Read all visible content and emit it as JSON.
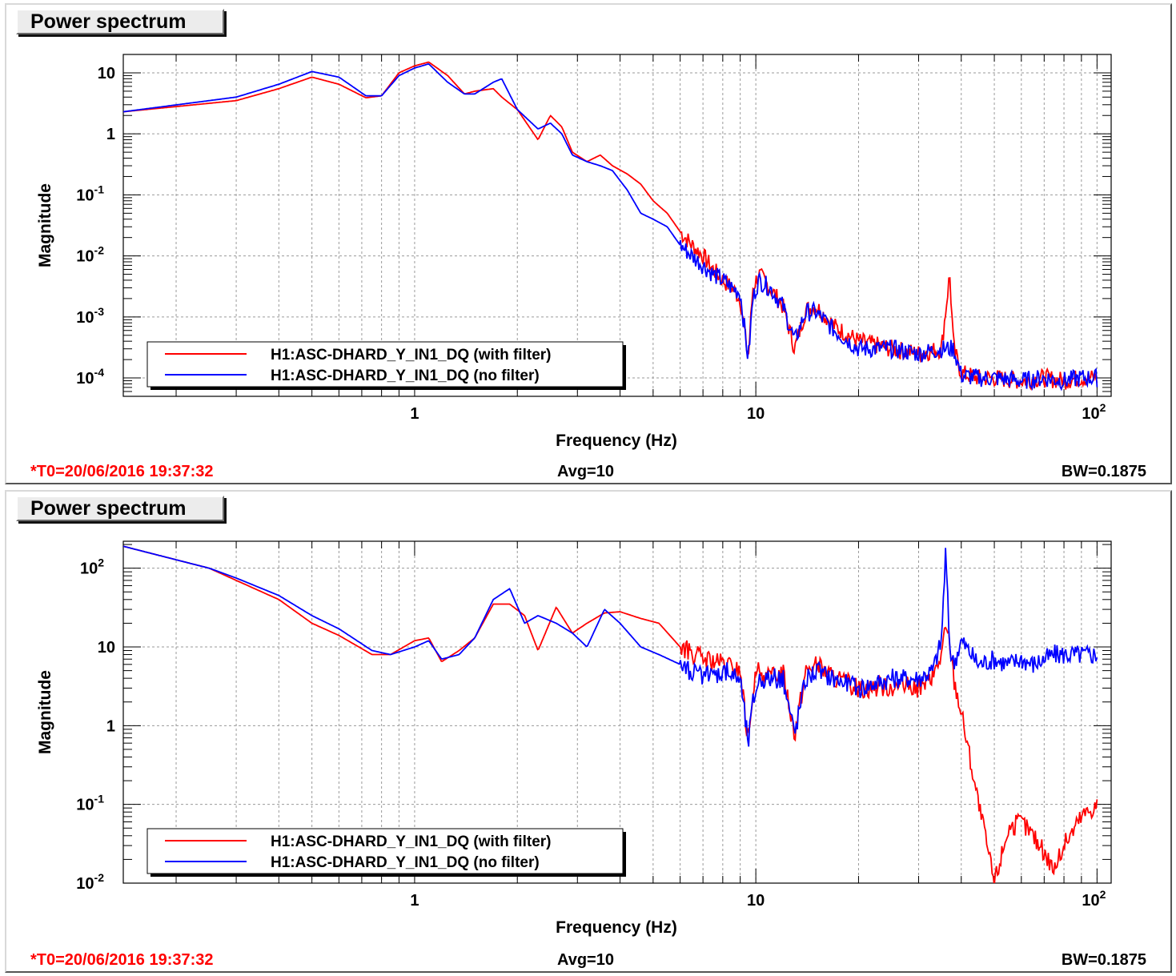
{
  "panels": [
    {
      "title": "Power spectrum",
      "footer": {
        "t0": "*T0=20/06/2016 19:37:32",
        "avg": "Avg=10",
        "bw": "BW=0.1875"
      }
    },
    {
      "title": "Power spectrum",
      "footer": {
        "t0": "*T0=20/06/2016 19:37:32",
        "avg": "Avg=10",
        "bw": "BW=0.1875"
      }
    }
  ],
  "colors": {
    "with_filter": "#ff0000",
    "no_filter": "#0000ff"
  },
  "chart_data": [
    {
      "type": "line",
      "title": "Power spectrum",
      "xlabel": "Frequency (Hz)",
      "ylabel": "Magnitude",
      "xscale": "log",
      "yscale": "log",
      "xlim": [
        0.14,
        110
      ],
      "ylim": [
        5e-05,
        20
      ],
      "xticks": [
        {
          "v": 1,
          "base": "1",
          "exp": ""
        },
        {
          "v": 10,
          "base": "10",
          "exp": ""
        },
        {
          "v": 100,
          "base": "10",
          "exp": "2"
        }
      ],
      "yticks": [
        {
          "v": 10,
          "base": "10",
          "exp": ""
        },
        {
          "v": 1,
          "base": "1",
          "exp": ""
        },
        {
          "v": 0.1,
          "base": "10",
          "exp": "-1"
        },
        {
          "v": 0.01,
          "base": "10",
          "exp": "-2"
        },
        {
          "v": 0.001,
          "base": "10",
          "exp": "-3"
        },
        {
          "v": 0.0001,
          "base": "10",
          "exp": "-4"
        }
      ],
      "grid": true,
      "legend_position": "bottom-left",
      "series": [
        {
          "name": "H1:ASC-DHARD_Y_IN1_DQ (with filter)",
          "color": "#ff0000",
          "x": [
            0.14,
            0.3,
            0.4,
            0.5,
            0.6,
            0.72,
            0.8,
            0.9,
            1.0,
            1.1,
            1.25,
            1.4,
            1.5,
            1.7,
            1.8,
            2.0,
            2.3,
            2.5,
            2.7,
            2.9,
            3.2,
            3.5,
            3.8,
            4.2,
            4.6,
            5.0,
            5.5,
            6.0,
            6.5,
            7.0,
            7.5,
            8.0,
            8.5,
            9.0,
            9.5,
            9.8,
            10.2,
            11,
            12,
            13,
            14,
            15,
            17,
            20,
            25,
            30,
            35,
            37,
            38,
            40,
            45,
            50,
            60,
            70,
            80,
            90,
            100
          ],
          "y": [
            2.3,
            3.5,
            5.5,
            8.5,
            6.5,
            3.9,
            4.2,
            10,
            13,
            15,
            9,
            4.5,
            5,
            5.5,
            4,
            2.5,
            0.8,
            2.0,
            1.3,
            0.5,
            0.35,
            0.45,
            0.3,
            0.22,
            0.15,
            0.08,
            0.05,
            0.025,
            0.015,
            0.01,
            0.006,
            0.004,
            0.003,
            0.002,
            0.0002,
            0.003,
            0.005,
            0.003,
            0.0015,
            0.0003,
            0.0013,
            0.0015,
            0.0007,
            0.0004,
            0.0003,
            0.00025,
            0.0003,
            0.005,
            0.0003,
            0.00012,
            0.0001,
            0.0001,
            9e-05,
            0.0001,
            9e-05,
            0.0001,
            0.0001
          ],
          "noise": 0.35
        },
        {
          "name": "H1:ASC-DHARD_Y_IN1_DQ (no filter)",
          "color": "#0000ff",
          "x": [
            0.14,
            0.3,
            0.4,
            0.5,
            0.6,
            0.72,
            0.8,
            0.9,
            1.0,
            1.1,
            1.25,
            1.4,
            1.5,
            1.7,
            1.8,
            2.0,
            2.3,
            2.5,
            2.7,
            2.9,
            3.2,
            3.5,
            3.8,
            4.2,
            4.6,
            5.0,
            5.5,
            6.0,
            6.5,
            7.0,
            7.5,
            8.0,
            8.5,
            9.0,
            9.5,
            9.8,
            10.2,
            11,
            12,
            13,
            14,
            15,
            17,
            20,
            25,
            30,
            35,
            37,
            38,
            40,
            45,
            50,
            60,
            70,
            80,
            90,
            100
          ],
          "y": [
            2.3,
            4,
            6.5,
            10.5,
            8.5,
            4.2,
            4.2,
            9,
            12,
            14,
            7,
            4.5,
            4.5,
            7,
            8,
            2.5,
            1.2,
            1.5,
            1.0,
            0.45,
            0.35,
            0.3,
            0.25,
            0.12,
            0.05,
            0.04,
            0.03,
            0.015,
            0.01,
            0.007,
            0.005,
            0.004,
            0.003,
            0.0025,
            0.0002,
            0.002,
            0.004,
            0.003,
            0.0015,
            0.0004,
            0.0012,
            0.0012,
            0.0006,
            0.0003,
            0.0003,
            0.00025,
            0.0003,
            0.0003,
            0.0003,
            0.00011,
            0.0001,
            0.0001,
            9e-05,
            0.0001,
            9e-05,
            0.0001,
            0.0001
          ],
          "noise": 0.35
        }
      ]
    },
    {
      "type": "line",
      "title": "Power spectrum",
      "xlabel": "Frequency (Hz)",
      "ylabel": "Magnitude",
      "xscale": "log",
      "yscale": "log",
      "xlim": [
        0.14,
        110
      ],
      "ylim": [
        0.01,
        220
      ],
      "xticks": [
        {
          "v": 1,
          "base": "1",
          "exp": ""
        },
        {
          "v": 10,
          "base": "10",
          "exp": ""
        },
        {
          "v": 100,
          "base": "10",
          "exp": "2"
        }
      ],
      "yticks": [
        {
          "v": 100,
          "base": "10",
          "exp": "2"
        },
        {
          "v": 10,
          "base": "10",
          "exp": ""
        },
        {
          "v": 1,
          "base": "1",
          "exp": ""
        },
        {
          "v": 0.1,
          "base": "10",
          "exp": "-1"
        },
        {
          "v": 0.01,
          "base": "10",
          "exp": "-2"
        }
      ],
      "grid": true,
      "legend_position": "bottom-left",
      "series": [
        {
          "name": "H1:ASC-DHARD_Y_IN1_DQ (with filter)",
          "color": "#ff0000",
          "x": [
            0.14,
            0.25,
            0.3,
            0.4,
            0.5,
            0.6,
            0.75,
            0.85,
            1.0,
            1.1,
            1.2,
            1.35,
            1.5,
            1.7,
            1.9,
            2.1,
            2.3,
            2.6,
            2.9,
            3.2,
            3.6,
            4.0,
            4.6,
            5.2,
            6.0,
            7.0,
            8.0,
            9.0,
            9.5,
            9.8,
            10.2,
            11,
            12,
            13,
            14,
            15,
            17,
            20,
            25,
            30,
            33,
            35,
            36,
            37,
            38,
            40,
            45,
            50,
            55,
            60,
            65,
            75,
            80,
            90,
            100
          ],
          "y": [
            190,
            100,
            70,
            40,
            20,
            14,
            8,
            8,
            12,
            13,
            6.5,
            9,
            13,
            35,
            35,
            25,
            9,
            32,
            15,
            20,
            27,
            28,
            23,
            20,
            10,
            7,
            6,
            5,
            0.6,
            3,
            5,
            4,
            5,
            0.8,
            5,
            6,
            4,
            3,
            3.2,
            3,
            4,
            8,
            17,
            12,
            4,
            1.5,
            0.1,
            0.01,
            0.05,
            0.06,
            0.04,
            0.015,
            0.03,
            0.07,
            0.1
          ],
          "noise": 0.3
        },
        {
          "name": "H1:ASC-DHARD_Y_IN1_DQ (no filter)",
          "color": "#0000ff",
          "x": [
            0.14,
            0.25,
            0.3,
            0.4,
            0.5,
            0.6,
            0.75,
            0.85,
            1.0,
            1.1,
            1.2,
            1.35,
            1.5,
            1.7,
            1.9,
            2.1,
            2.3,
            2.6,
            2.9,
            3.2,
            3.6,
            4.0,
            4.6,
            5.2,
            6.0,
            7.0,
            8.0,
            9.0,
            9.5,
            9.8,
            10.2,
            11,
            12,
            13,
            14,
            15,
            17,
            20,
            25,
            30,
            33,
            35,
            36,
            37,
            38,
            40,
            45,
            50,
            55,
            60,
            65,
            75,
            80,
            90,
            100
          ],
          "y": [
            190,
            100,
            75,
            45,
            25,
            17,
            9,
            8,
            10,
            12,
            7,
            8,
            13,
            40,
            55,
            20,
            25,
            20,
            15,
            10,
            30,
            20,
            10,
            8,
            6,
            4,
            5,
            4,
            0.6,
            2,
            4,
            4,
            4,
            0.8,
            4,
            5,
            4,
            3,
            4,
            4,
            5,
            12,
            160,
            10,
            6,
            12,
            6,
            7,
            6,
            7,
            6,
            8,
            8,
            8,
            8
          ],
          "noise": 0.3
        }
      ]
    }
  ]
}
